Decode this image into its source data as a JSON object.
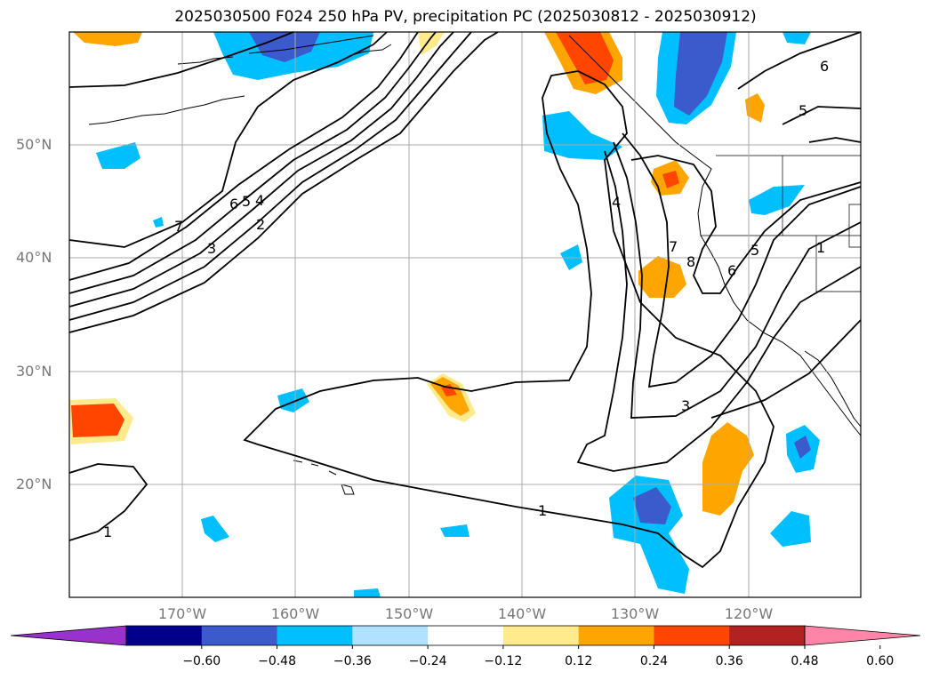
{
  "title": "2025030500 F024 250 hPa PV, precipitation PC (2025030812 - 2025030912)",
  "map": {
    "lat_labels": [
      "50°N",
      "40°N",
      "30°N",
      "20°N"
    ],
    "lon_labels": [
      "170°W",
      "160°W",
      "150°W",
      "140°W",
      "130°W",
      "120°W"
    ],
    "pv_contour_labels": [
      "7",
      "6",
      "5",
      "4",
      "3",
      "2",
      "1",
      "1",
      "3",
      "4",
      "7",
      "8",
      "6",
      "5",
      "1",
      "6",
      "5"
    ],
    "grid": true,
    "extent": {
      "lon": [
        -180,
        -110
      ],
      "lat": [
        10,
        60
      ]
    }
  },
  "colorbar": {
    "ticks": [
      "−0.60",
      "−0.48",
      "−0.36",
      "−0.24",
      "−0.12",
      "0.12",
      "0.24",
      "0.36",
      "0.48",
      "0.60"
    ],
    "colors": [
      "#9932cc",
      "#00008b",
      "#3b5bcc",
      "#00bfff",
      "#b0e2ff",
      "#ffffff",
      "#ffea8c",
      "#ffa500",
      "#ff4500",
      "#b22222",
      "#ff85a8"
    ],
    "extend": "both"
  }
}
